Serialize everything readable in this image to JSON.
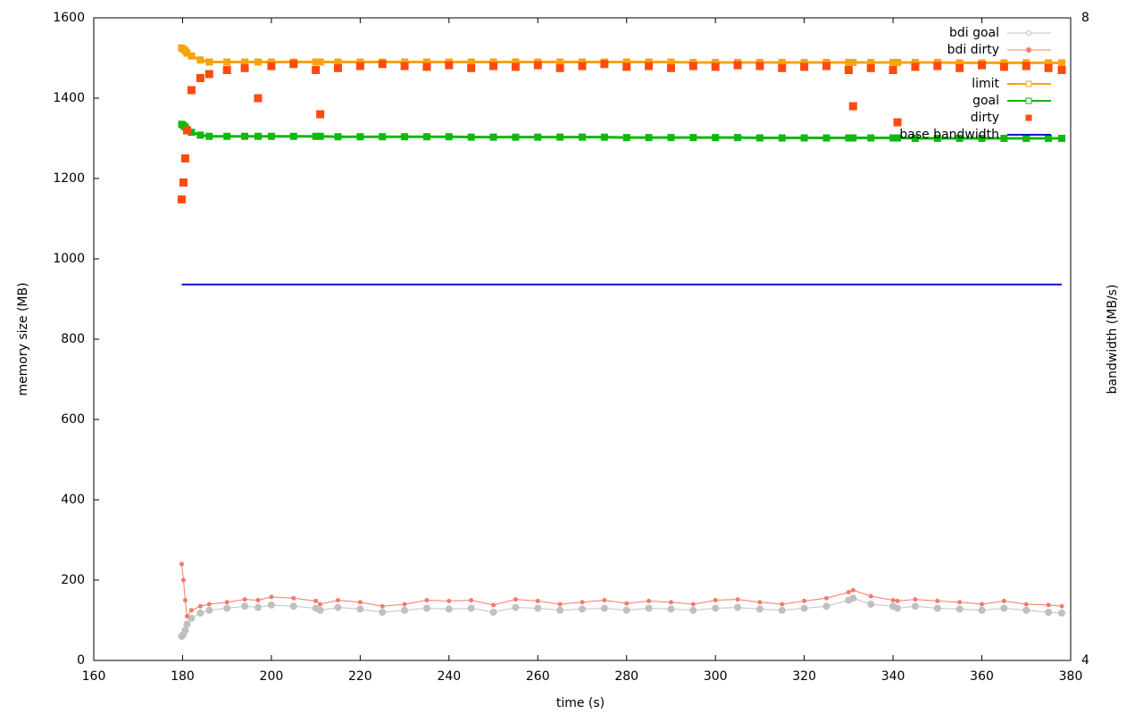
{
  "chart_data": {
    "type": "line",
    "x_label": "time (s)",
    "y_label": "memory size (MB)",
    "y2_label": "bandwidth (MB/s)",
    "xlim": [
      160,
      380
    ],
    "xticks": [
      160,
      180,
      200,
      220,
      240,
      260,
      280,
      300,
      320,
      340,
      360,
      380
    ],
    "ylim": [
      0,
      1600
    ],
    "yticks": [
      0,
      200,
      400,
      600,
      800,
      1000,
      1200,
      1400,
      1600
    ],
    "y2lim": [
      4,
      8
    ],
    "y2ticks": [
      4,
      8
    ],
    "legend": "top-right",
    "x": [
      179.8,
      180.2,
      180.6,
      181,
      182,
      184,
      186,
      190,
      194,
      197,
      200,
      205,
      210,
      211,
      215,
      220,
      225,
      230,
      235,
      240,
      245,
      250,
      255,
      260,
      265,
      270,
      275,
      280,
      285,
      290,
      295,
      300,
      305,
      310,
      315,
      320,
      325,
      330,
      331,
      335,
      340,
      341,
      345,
      350,
      355,
      360,
      365,
      370,
      375,
      378
    ],
    "series": [
      {
        "name": "bdi goal",
        "color": "#c0c0c0",
        "values": [
          60,
          65,
          75,
          90,
          105,
          118,
          125,
          130,
          135,
          132,
          138,
          135,
          130,
          125,
          132,
          128,
          120,
          125,
          130,
          128,
          130,
          120,
          132,
          130,
          125,
          128,
          130,
          125,
          130,
          128,
          125,
          130,
          132,
          128,
          125,
          130,
          135,
          150,
          155,
          140,
          135,
          130,
          135,
          130,
          128,
          125,
          130,
          125,
          120,
          118
        ]
      },
      {
        "name": "bdi dirty",
        "color": "#f47a68",
        "values": [
          240,
          200,
          150,
          110,
          125,
          135,
          140,
          145,
          152,
          150,
          158,
          155,
          148,
          140,
          150,
          145,
          135,
          140,
          150,
          148,
          150,
          138,
          152,
          148,
          140,
          145,
          150,
          142,
          148,
          145,
          140,
          150,
          152,
          145,
          140,
          148,
          155,
          170,
          175,
          160,
          150,
          148,
          152,
          148,
          145,
          140,
          148,
          140,
          138,
          135
        ]
      },
      {
        "name": "limit",
        "color": "#f5a410",
        "values": [
          1525,
          1522,
          1518,
          1512,
          1505,
          1495,
          1490,
          1490,
          1490,
          1490,
          1490,
          1490,
          1490,
          1490,
          1490,
          1490,
          1490,
          1490,
          1490,
          1490,
          1490,
          1490,
          1490,
          1490,
          1490,
          1490,
          1490,
          1490,
          1490,
          1490,
          1489,
          1489,
          1489,
          1489,
          1489,
          1489,
          1489,
          1489,
          1489,
          1489,
          1489,
          1489,
          1489,
          1489,
          1488,
          1488,
          1488,
          1488,
          1488,
          1488
        ]
      },
      {
        "name": "goal",
        "color": "#10b810",
        "values": [
          1335,
          1332,
          1328,
          1322,
          1315,
          1308,
          1305,
          1305,
          1305,
          1305,
          1305,
          1305,
          1305,
          1305,
          1304,
          1304,
          1304,
          1304,
          1304,
          1304,
          1303,
          1303,
          1303,
          1303,
          1303,
          1303,
          1303,
          1302,
          1302,
          1302,
          1302,
          1302,
          1302,
          1301,
          1301,
          1301,
          1301,
          1301,
          1301,
          1301,
          1301,
          1301,
          1300,
          1300,
          1300,
          1300,
          1300,
          1300,
          1300,
          1300
        ]
      },
      {
        "name": "dirty",
        "color": "#ff4a10",
        "values": [
          1148,
          1190,
          1250,
          1320,
          1420,
          1450,
          1460,
          1470,
          1475,
          1400,
          1480,
          1485,
          1470,
          1360,
          1475,
          1480,
          1485,
          1480,
          1478,
          1482,
          1475,
          1480,
          1478,
          1482,
          1475,
          1480,
          1485,
          1478,
          1480,
          1475,
          1480,
          1478,
          1482,
          1480,
          1475,
          1478,
          1480,
          1470,
          1380,
          1475,
          1470,
          1340,
          1478,
          1480,
          1475,
          1482,
          1478,
          1480,
          1475,
          1470
        ]
      },
      {
        "name": "base bandwidth",
        "color": "#1010d0",
        "axis": "y2",
        "values": [
          6.34,
          6.34,
          6.34,
          6.34,
          6.34,
          6.34,
          6.34,
          6.34,
          6.34,
          6.34,
          6.34,
          6.34,
          6.34,
          6.34,
          6.34,
          6.34,
          6.34,
          6.34,
          6.34,
          6.34,
          6.34,
          6.34,
          6.34,
          6.34,
          6.34,
          6.34,
          6.34,
          6.34,
          6.34,
          6.34,
          6.34,
          6.34,
          6.34,
          6.34,
          6.34,
          6.34,
          6.34,
          6.34,
          6.34,
          6.34,
          6.34,
          6.34,
          6.34,
          6.34,
          6.34,
          6.34,
          6.34,
          6.34,
          6.34,
          6.34
        ]
      }
    ]
  }
}
